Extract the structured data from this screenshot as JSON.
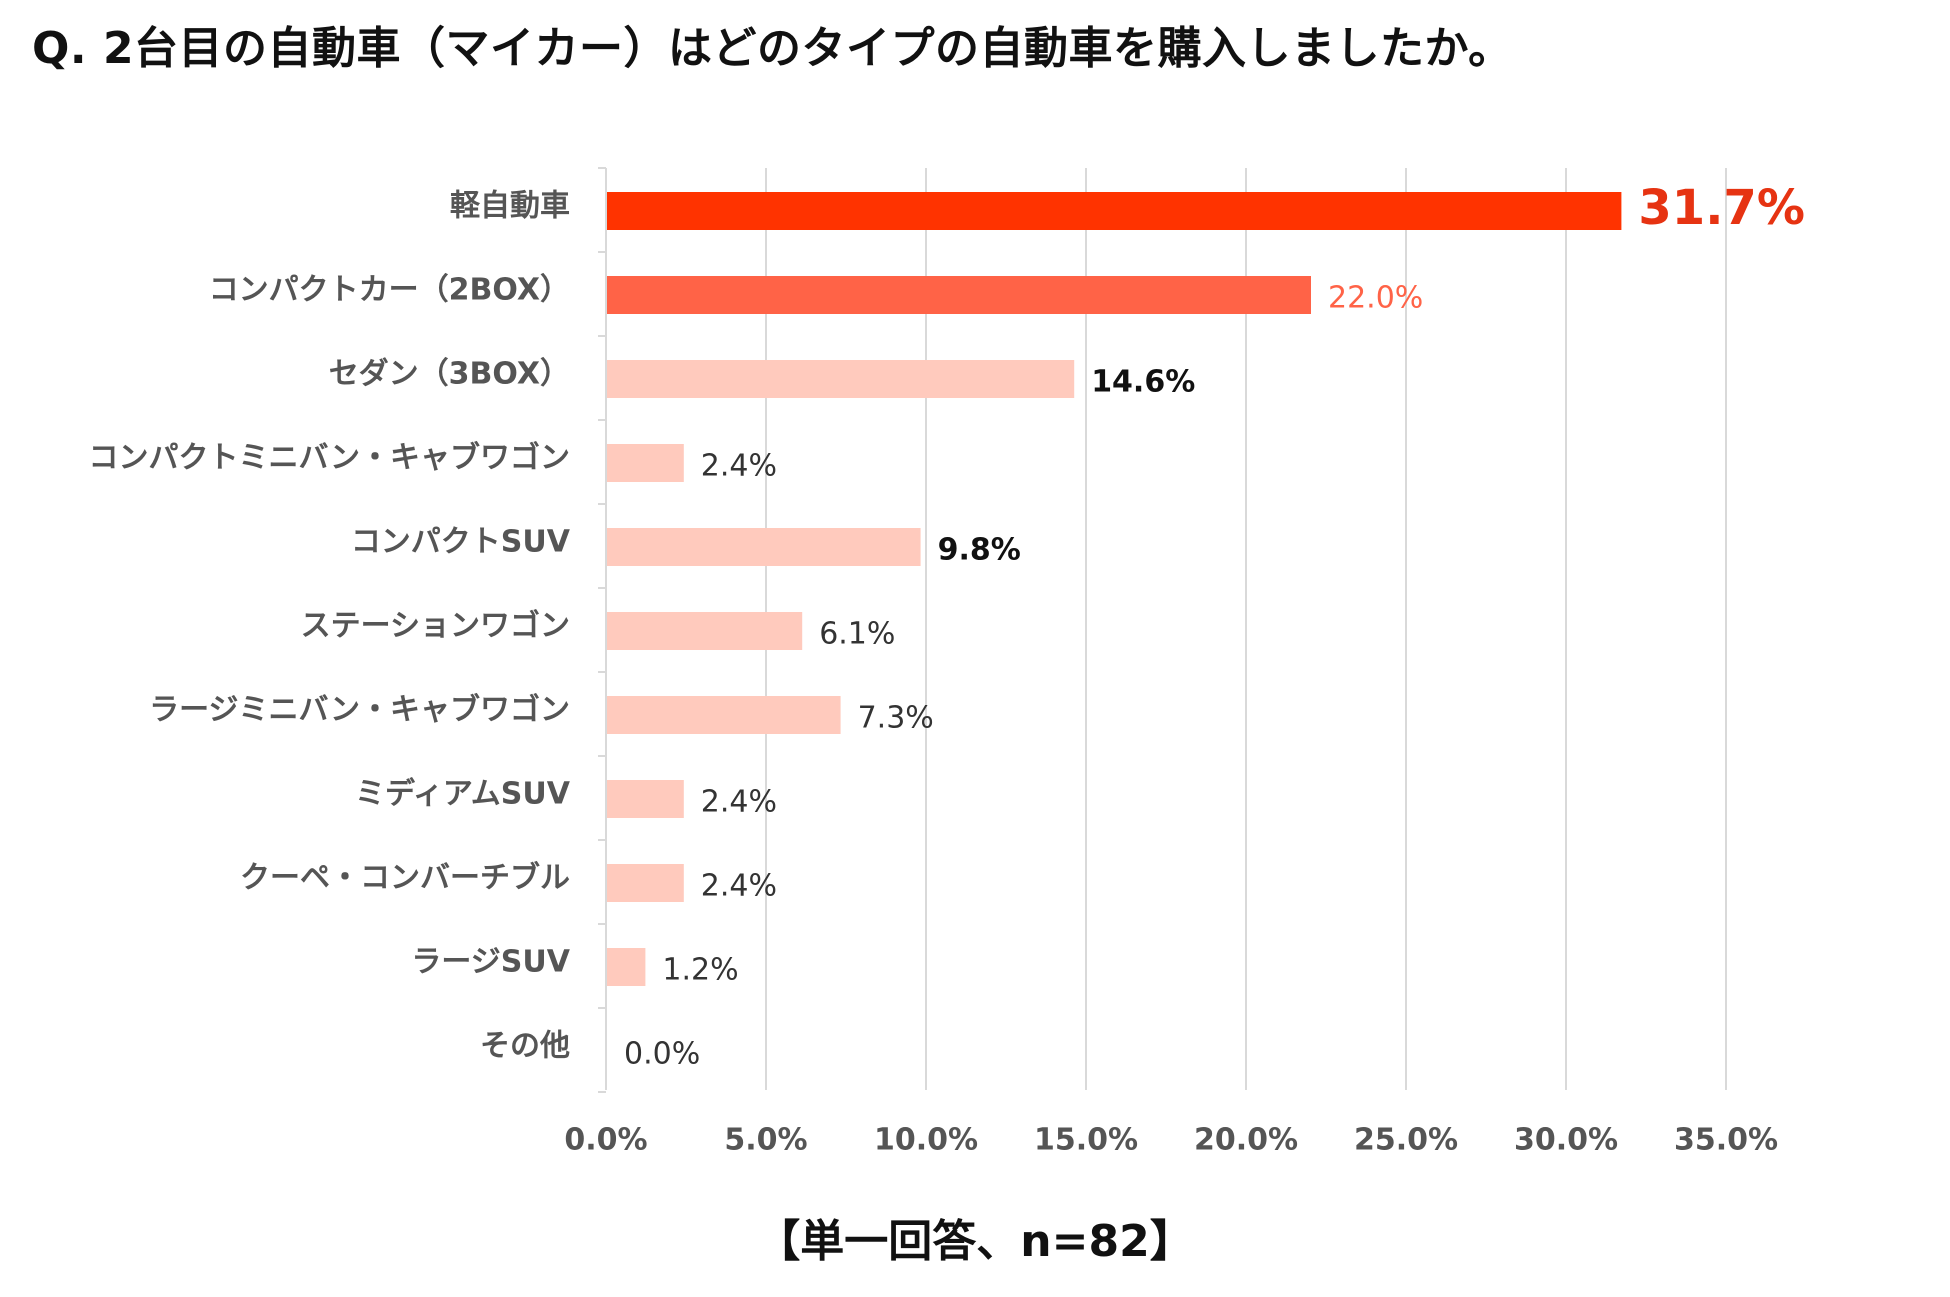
{
  "title": "Q. 2台目の自動車（マイカー）はどのタイプの自動車を購入しましたか。",
  "footer": "【単一回答、n=82】",
  "chart_data": {
    "type": "bar",
    "orientation": "horizontal",
    "categories": [
      "軽自動車",
      "コンパクトカー（2BOX）",
      "セダン（3BOX）",
      "コンパクトミニバン・キャブワゴン",
      "コンパクトSUV",
      "ステーションワゴン",
      "ラージミニバン・キャブワゴン",
      "ミディアムSUV",
      "クーペ・コンバーチブル",
      "ラージSUV",
      "その他"
    ],
    "values": [
      31.7,
      22.0,
      14.6,
      2.4,
      9.8,
      6.1,
      7.3,
      2.4,
      2.4,
      1.2,
      0.0
    ],
    "value_labels": [
      "31.7%",
      "22.0%",
      "14.6%",
      "2.4%",
      "9.8%",
      "6.1%",
      "7.3%",
      "2.4%",
      "2.4%",
      "1.2%",
      "0.0%"
    ],
    "bar_colors": [
      "#ff3300",
      "#ff6347",
      "#ffcabd",
      "#ffcabd",
      "#ffcabd",
      "#ffcabd",
      "#ffcabd",
      "#ffcabd",
      "#ffcabd",
      "#ffcabd",
      "#ffcabd"
    ],
    "value_label_colors": [
      "#e63312",
      "#ff6347",
      "#111111",
      "#333333",
      "#111111",
      "#333333",
      "#333333",
      "#333333",
      "#333333",
      "#333333",
      "#333333"
    ],
    "xlim": [
      0,
      35
    ],
    "xticks": [
      0,
      5,
      10,
      15,
      20,
      25,
      30,
      35
    ],
    "xtick_labels": [
      "0.0%",
      "5.0%",
      "10.0%",
      "15.0%",
      "20.0%",
      "25.0%",
      "30.0%",
      "35.0%"
    ],
    "xlabel": "",
    "ylabel": "",
    "grid": "vertical",
    "legend": "none"
  }
}
